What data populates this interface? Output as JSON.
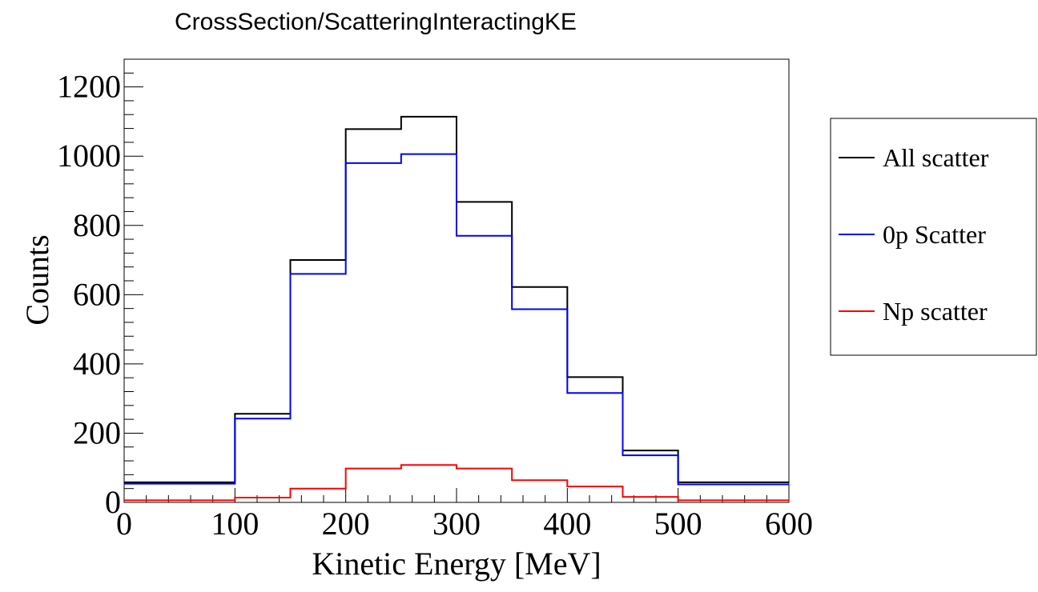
{
  "chart_data": {
    "type": "histogram",
    "title": "CrossSection/ScatteringInteractingKE",
    "xlabel": "Kinetic Energy [MeV]",
    "ylabel": "Counts",
    "xlim": [
      0,
      600
    ],
    "ylim": [
      0,
      1280
    ],
    "xticks": [
      "0",
      "100",
      "200",
      "300",
      "400",
      "500",
      "600"
    ],
    "yticks": [
      "0",
      "200",
      "400",
      "600",
      "800",
      "1000",
      "1200"
    ],
    "bin_edges": [
      0,
      100,
      150,
      200,
      250,
      300,
      350,
      400,
      450,
      500,
      600
    ],
    "series": [
      {
        "name": "All scatter",
        "color": "#000000",
        "values": [
          58,
          256,
          700,
          1078,
          1114,
          868,
          622,
          362,
          150,
          58
        ]
      },
      {
        "name": "0p Scatter",
        "color": "#0000ff",
        "values": [
          54,
          242,
          660,
          980,
          1006,
          770,
          558,
          316,
          136,
          52
        ]
      },
      {
        "name": "Np scatter",
        "color": "#ff0000",
        "values": [
          6,
          14,
          40,
          98,
          108,
          98,
          64,
          46,
          16,
          6
        ]
      }
    ],
    "legend_position": "right",
    "grid": false
  }
}
